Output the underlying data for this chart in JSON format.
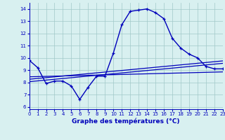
{
  "hours": [
    0,
    1,
    2,
    3,
    4,
    5,
    6,
    7,
    8,
    9,
    10,
    11,
    12,
    13,
    14,
    15,
    16,
    17,
    18,
    19,
    20,
    21,
    22,
    23
  ],
  "temp_curve": [
    9.8,
    9.2,
    7.9,
    8.1,
    8.1,
    7.7,
    6.6,
    7.6,
    8.5,
    8.5,
    10.4,
    12.7,
    13.8,
    13.9,
    14.0,
    13.7,
    13.2,
    11.6,
    10.8,
    10.3,
    10.0,
    9.3,
    9.1,
    9.1
  ],
  "line1_x": [
    0,
    23
  ],
  "line1_y": [
    8.05,
    9.55
  ],
  "line2_x": [
    0,
    23
  ],
  "line2_y": [
    8.25,
    9.75
  ],
  "line3_x": [
    0,
    23
  ],
  "line3_y": [
    8.45,
    8.85
  ],
  "curve_color": "#0000bb",
  "line_color": "#0000bb",
  "bg_color": "#d8f0f0",
  "grid_color": "#a0c8c8",
  "xlabel": "Graphe des températures (°C)",
  "ylim": [
    5.8,
    14.5
  ],
  "xlim": [
    0,
    23
  ],
  "yticks": [
    6,
    7,
    8,
    9,
    10,
    11,
    12,
    13,
    14
  ],
  "xticks": [
    0,
    1,
    2,
    3,
    4,
    5,
    6,
    7,
    8,
    9,
    10,
    11,
    12,
    13,
    14,
    15,
    16,
    17,
    18,
    19,
    20,
    21,
    22,
    23
  ]
}
